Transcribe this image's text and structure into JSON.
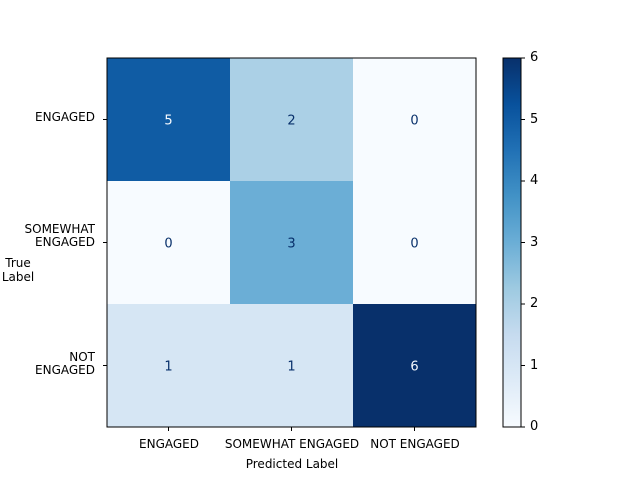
{
  "chart_data": {
    "type": "heatmap",
    "title": "",
    "xlabel": "Predicted Label",
    "ylabel": "True\nLabel",
    "x_categories": [
      "ENGAGED",
      "SOMEWHAT ENGAGED",
      "NOT ENGAGED"
    ],
    "y_categories": [
      "ENGAGED",
      "SOMEWHAT\nENGAGED",
      "NOT\nENGAGED"
    ],
    "values": [
      [
        5,
        2,
        0
      ],
      [
        0,
        3,
        0
      ],
      [
        1,
        1,
        6
      ]
    ],
    "colormap": "Blues",
    "colorbar": {
      "min": 0,
      "max": 6,
      "ticks": [
        "0",
        "1",
        "2",
        "3",
        "4",
        "5",
        "6"
      ]
    }
  }
}
